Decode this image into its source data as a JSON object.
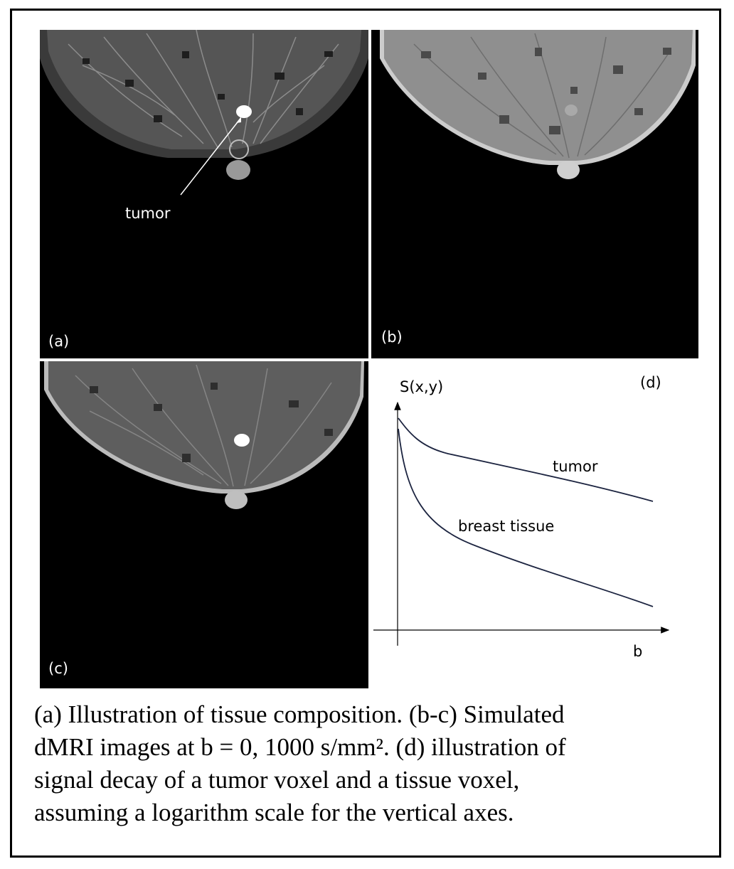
{
  "panels": {
    "a": {
      "label": "(a)",
      "annotation": "tumor"
    },
    "b": {
      "label": "(b)"
    },
    "c": {
      "label": "(c)"
    }
  },
  "graph": {
    "label": "(d)",
    "y_axis_label": "S(x,y)",
    "x_axis_label": "b",
    "curves": [
      {
        "name": "tumor"
      },
      {
        "name": "breast tissue"
      }
    ]
  },
  "caption": {
    "line1": "(a) Illustration of tissue composition. (b-c) Simulated",
    "line2": "dMRI images at b = 0, 1000 s/mm². (d) illustration of",
    "line3": "signal decay of a tumor voxel and a tissue voxel,",
    "line4": "assuming a logarithm scale for the vertical axes."
  }
}
